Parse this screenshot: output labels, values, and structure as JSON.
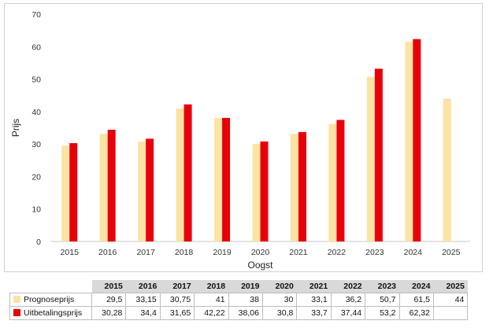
{
  "chart_data": {
    "type": "bar",
    "title": "",
    "xlabel": "Oogst",
    "ylabel": "Prijs",
    "ylim": [
      0,
      70
    ],
    "yticks": [
      0,
      10,
      20,
      30,
      40,
      50,
      60,
      70
    ],
    "grid": false,
    "categories": [
      "2015",
      "2016",
      "2017",
      "2018",
      "2019",
      "2020",
      "2021",
      "2022",
      "2023",
      "2024",
      "2025"
    ],
    "series": [
      {
        "name": "Prognoseprijs",
        "color": "#fbe3a4",
        "values": [
          29.5,
          33.15,
          30.75,
          41,
          38,
          30,
          33.1,
          36.2,
          50.7,
          61.5,
          44
        ],
        "labels": [
          "29,5",
          "33,15",
          "30,75",
          "41",
          "38",
          "30",
          "33,1",
          "36,2",
          "50,7",
          "61,5",
          "44"
        ]
      },
      {
        "name": "Uitbetalingsprijs",
        "color": "#e8000b",
        "values": [
          30.28,
          34.4,
          31.65,
          42.22,
          38.06,
          30.8,
          33.7,
          37.44,
          53.2,
          62.32,
          null
        ],
        "labels": [
          "30,28",
          "34,4",
          "31,65",
          "42,22",
          "38,06",
          "30,8",
          "33,7",
          "37,44",
          "53,2",
          "62,32",
          ""
        ]
      }
    ]
  }
}
